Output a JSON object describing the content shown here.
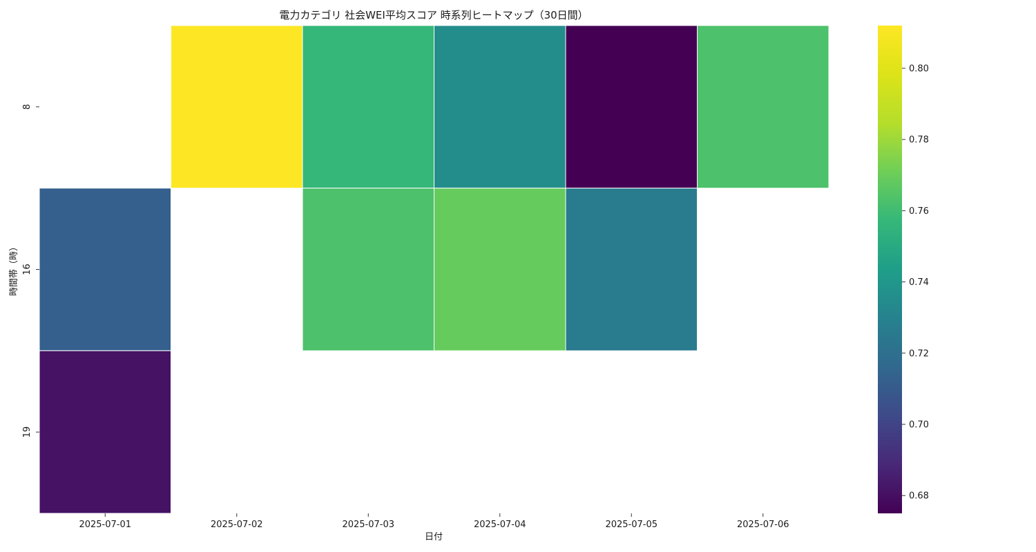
{
  "chart_data": {
    "type": "heatmap",
    "title": "電力カテゴリ 社会WEI平均スコア 時系列ヒートマップ（30日間）",
    "xlabel": "日付",
    "ylabel": "時間帯（時）",
    "x_categories": [
      "2025-07-01",
      "2025-07-02",
      "2025-07-03",
      "2025-07-04",
      "2025-07-05",
      "2025-07-06"
    ],
    "y_categories": [
      "8",
      "16",
      "19"
    ],
    "values": [
      [
        null,
        0.812,
        0.757,
        0.735,
        0.675,
        0.763
      ],
      [
        0.712,
        null,
        0.763,
        0.769,
        0.726,
        null
      ],
      [
        0.681,
        null,
        null,
        null,
        null,
        null
      ]
    ],
    "colormap": "viridis",
    "colorbar": {
      "range": [
        0.675,
        0.812
      ],
      "ticks": [
        "0.68",
        "0.70",
        "0.72",
        "0.74",
        "0.76",
        "0.78",
        "0.80"
      ]
    },
    "grid": false,
    "cell_border_color": "#ffffff"
  }
}
